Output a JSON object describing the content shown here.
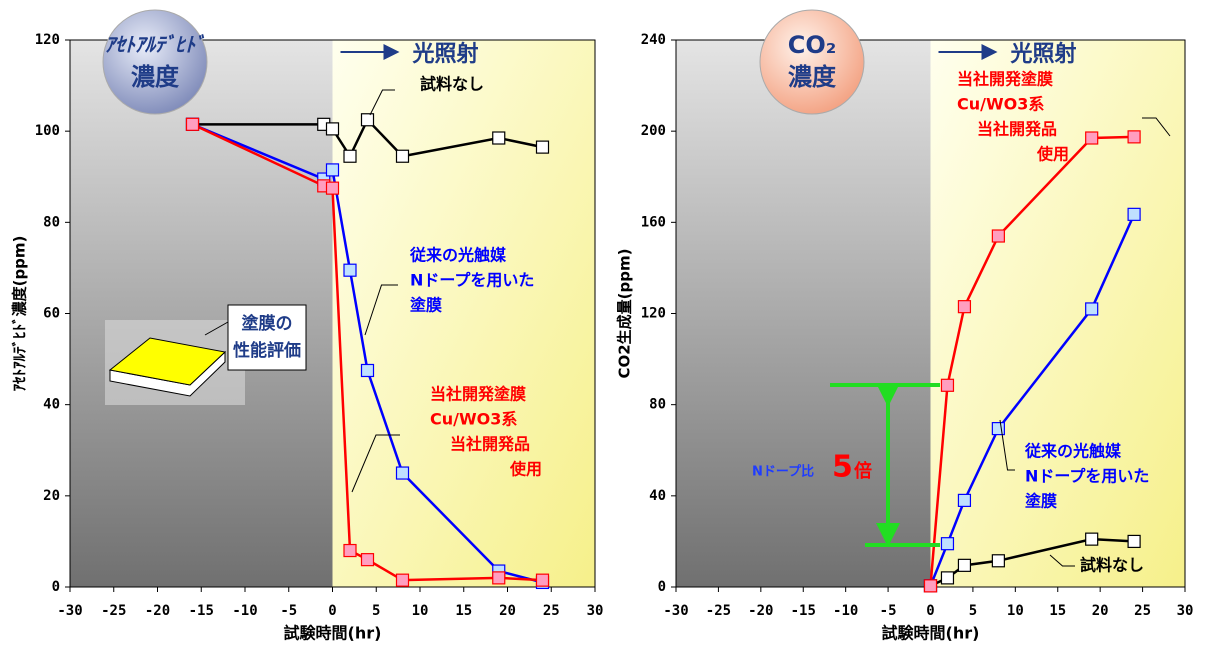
{
  "chart_data": [
    {
      "type": "line",
      "badge": [
        "ｱｾﾄｱﾙﾃﾞﾋﾄﾞ",
        "濃度"
      ],
      "light": "光照射",
      "xlabel": "試験時間(hr)",
      "ylabel": "ｱｾﾄｱﾙﾃﾞﾋﾄﾞ濃度(ppm)",
      "xlim": [
        -30,
        30
      ],
      "xticks": [
        -30,
        -25,
        -20,
        -15,
        -10,
        -5,
        0,
        5,
        10,
        15,
        20,
        25,
        30
      ],
      "ylim": [
        0,
        120
      ],
      "yticks": [
        0,
        20,
        40,
        60,
        80,
        100,
        120
      ],
      "series": [
        {
          "color": "#000000",
          "x": [
            -16,
            -1,
            0,
            2,
            4,
            8,
            19,
            24
          ],
          "values": [
            101.5,
            101.5,
            100.5,
            94.5,
            102.5,
            94.5,
            98.5,
            96.5
          ]
        },
        {
          "color": "#0000ff",
          "x": [
            -16,
            -1,
            0,
            2,
            4,
            8,
            19,
            24
          ],
          "values": [
            101.5,
            89.5,
            91.5,
            69.5,
            47.5,
            25,
            3.5,
            1
          ]
        },
        {
          "color": "#ff0000",
          "x": [
            -16,
            -1,
            0,
            2,
            4,
            8,
            19,
            24
          ],
          "values": [
            101.5,
            88,
            87.5,
            8,
            6,
            1.5,
            2,
            1.5
          ]
        }
      ],
      "annotations": [
        [
          "試料なし"
        ],
        [
          "従来の光触媒",
          "Nドープを用いた",
          "塗膜"
        ],
        [
          "当社開発塗膜",
          "Cu/WO3系",
          "当社開発品",
          "使用"
        ]
      ],
      "inset": [
        "塗膜の",
        "性能評価"
      ]
    },
    {
      "type": "line",
      "badge": [
        "CO₂",
        "濃度"
      ],
      "light": "光照射",
      "xlabel": "試験時間(hr)",
      "ylabel": "CO2生成量(ppm)",
      "xlim": [
        -30,
        30
      ],
      "xticks": [
        -30,
        -25,
        -20,
        -15,
        -10,
        -5,
        0,
        5,
        10,
        15,
        20,
        25,
        30
      ],
      "ylim": [
        0,
        240
      ],
      "yticks": [
        0,
        40,
        80,
        120,
        160,
        200,
        240
      ],
      "series": [
        {
          "color": "#000000",
          "x": [
            0,
            2,
            4,
            8,
            19,
            24
          ],
          "values": [
            0.5,
            4,
            9.5,
            11.5,
            21,
            20
          ]
        },
        {
          "color": "#0000ff",
          "x": [
            0,
            2,
            4,
            8,
            19,
            24
          ],
          "values": [
            0.5,
            19,
            38,
            69.5,
            122,
            163.5
          ]
        },
        {
          "color": "#ff0000",
          "x": [
            0,
            2,
            4,
            8,
            19,
            24
          ],
          "values": [
            0.5,
            88.5,
            123,
            154,
            197,
            197.5
          ]
        }
      ],
      "annotations": [
        [
          "試料なし"
        ],
        [
          "従来の光触媒",
          "Nドープを用いた",
          "塗膜"
        ],
        [
          "当社開発塗膜",
          "Cu/WO3系",
          "当社開発品",
          "使用"
        ]
      ],
      "ratio": [
        "Nドープ比",
        "5",
        "倍"
      ]
    }
  ]
}
